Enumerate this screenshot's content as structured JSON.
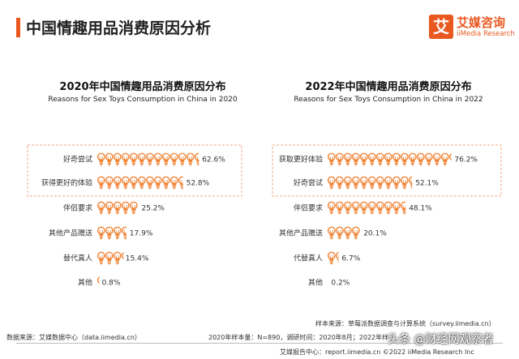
{
  "header": {
    "title": "中国情趣用品消费原因分析",
    "logo_mark": "艾",
    "logo_cn": "艾媒咨询",
    "logo_en": "iiMedia Research"
  },
  "colors": {
    "accent": "#e8581f",
    "bulb": "#f08436",
    "highlight_box": "#f0a880"
  },
  "icons": {
    "mark": "lightbulb-icon"
  },
  "chart_data": [
    {
      "type": "bar",
      "title": "2020年中国情趣用品消费原因分布",
      "subtitle": "Reasons for Sex Toys Consumption in China in 2020",
      "categories": [
        "好奇尝试",
        "获得更好的体验",
        "伴侣要求",
        "其他产品赠送",
        "替代真人",
        "其他"
      ],
      "values": [
        62.6,
        52.8,
        25.2,
        17.9,
        15.4,
        0.8
      ],
      "labels": [
        "62.6%",
        "52.8%",
        "25.2%",
        "17.9%",
        "15.4%",
        "0.8%"
      ],
      "highlighted": [
        0,
        1
      ],
      "ylim": [
        0,
        80
      ]
    },
    {
      "type": "bar",
      "title": "2022年中国情趣用品消费原因分布",
      "subtitle": "Reasons for Sex Toys Consumption in China in 2022",
      "categories": [
        "获取更好体验",
        "好奇尝试",
        "伴侣要求",
        "其他产品赠送",
        "代替真人",
        "其他"
      ],
      "values": [
        76.2,
        52.1,
        48.1,
        20.1,
        6.7,
        0.2
      ],
      "labels": [
        "76.2%",
        "52.1%",
        "48.1%",
        "20.1%",
        "6.7%",
        "0.2%"
      ],
      "highlighted": [
        0,
        1
      ],
      "ylim": [
        0,
        80
      ]
    }
  ],
  "footer": {
    "sample_source": "样本来源：草莓派数据调查与计算系统（survey.iimedia.cn）",
    "data_source": "数据来源：艾媒数据中心（data.iimedia.cn）",
    "sample_info": "2020年样本量：N=890，调研时间：2020年8月；2022年样",
    "report_center": "艾媒报告中心：report.iimedia.cn  ©2022  iiMedia Research  Inc",
    "watermark": "头条 @财经网观察者"
  }
}
